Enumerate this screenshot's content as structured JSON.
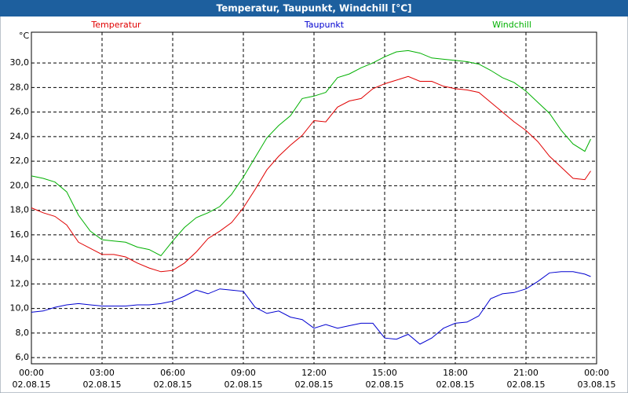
{
  "chart_data": {
    "type": "line",
    "title": "Temperatur, Taupunkt, Windchill [°C]",
    "y_unit": "°C",
    "x": [
      0,
      0.5,
      1,
      1.5,
      2,
      2.5,
      3,
      3.5,
      4,
      4.5,
      5,
      5.5,
      6,
      6.5,
      7,
      7.5,
      8,
      8.5,
      9,
      9.5,
      10,
      10.5,
      11,
      11.5,
      12,
      12.5,
      13,
      13.5,
      14,
      14.5,
      15,
      15.5,
      16,
      16.5,
      17,
      17.5,
      18,
      18.5,
      19,
      19.5,
      20,
      20.5,
      21,
      21.5,
      22,
      22.5,
      23,
      23.5,
      23.75
    ],
    "series": [
      {
        "name": "Temperatur",
        "color": "#e00000",
        "values": [
          18.2,
          17.8,
          17.5,
          16.8,
          15.4,
          14.9,
          14.4,
          14.4,
          14.2,
          13.7,
          13.3,
          13.0,
          13.1,
          13.7,
          14.6,
          15.7,
          16.3,
          17.0,
          18.2,
          19.7,
          21.3,
          22.4,
          23.3,
          24.1,
          25.3,
          25.2,
          26.4,
          26.9,
          27.1,
          27.9,
          28.3,
          28.6,
          28.9,
          28.5,
          28.5,
          28.1,
          27.9,
          27.8,
          27.6,
          26.8,
          26.0,
          25.2,
          24.5,
          23.6,
          22.4,
          21.5,
          20.6,
          20.5,
          21.2
        ]
      },
      {
        "name": "Taupunkt",
        "color": "#0000d0",
        "values": [
          9.7,
          9.8,
          10.1,
          10.3,
          10.4,
          10.3,
          10.2,
          10.2,
          10.2,
          10.3,
          10.3,
          10.4,
          10.6,
          11.0,
          11.5,
          11.2,
          11.6,
          11.5,
          11.4,
          10.1,
          9.6,
          9.8,
          9.3,
          9.1,
          8.4,
          8.7,
          8.4,
          8.6,
          8.8,
          8.8,
          7.6,
          7.5,
          7.9,
          7.1,
          7.6,
          8.4,
          8.8,
          8.9,
          9.4,
          10.8,
          11.2,
          11.3,
          11.6,
          12.2,
          12.9,
          13.0,
          13.0,
          12.8,
          12.6
        ]
      },
      {
        "name": "Windchill",
        "color": "#00b000",
        "values": [
          20.8,
          20.6,
          20.3,
          19.5,
          17.6,
          16.3,
          15.6,
          15.5,
          15.4,
          15.0,
          14.8,
          14.3,
          15.5,
          16.6,
          17.4,
          17.8,
          18.3,
          19.3,
          20.7,
          22.3,
          23.9,
          24.9,
          25.7,
          27.1,
          27.3,
          27.6,
          28.8,
          29.1,
          29.6,
          30.0,
          30.5,
          30.9,
          31.0,
          30.8,
          30.4,
          30.3,
          30.2,
          30.1,
          29.9,
          29.4,
          28.8,
          28.4,
          27.7,
          26.8,
          25.9,
          24.5,
          23.4,
          22.8,
          23.8
        ]
      }
    ],
    "xlim": [
      0,
      24
    ],
    "xticks": [
      {
        "value": 0,
        "label": "00:00"
      },
      {
        "value": 3,
        "label": "03:00"
      },
      {
        "value": 6,
        "label": "06:00"
      },
      {
        "value": 9,
        "label": "09:00"
      },
      {
        "value": 12,
        "label": "12:00"
      },
      {
        "value": 15,
        "label": "15:00"
      },
      {
        "value": 18,
        "label": "18:00"
      },
      {
        "value": 21,
        "label": "21:00"
      },
      {
        "value": 24,
        "label": "00:00"
      }
    ],
    "xtick_dates": [
      "02.08.15",
      "02.08.15",
      "02.08.15",
      "02.08.15",
      "02.08.15",
      "02.08.15",
      "02.08.15",
      "02.08.15",
      "03.08.15"
    ],
    "ylim": [
      5.5,
      32.5
    ],
    "yticks": [
      {
        "value": 6,
        "label": "6,0"
      },
      {
        "value": 8,
        "label": "8,0"
      },
      {
        "value": 10,
        "label": "10,0"
      },
      {
        "value": 12,
        "label": "12,0"
      },
      {
        "value": 14,
        "label": "14,0"
      },
      {
        "value": 16,
        "label": "16,0"
      },
      {
        "value": 18,
        "label": "18,0"
      },
      {
        "value": 20,
        "label": "20,0"
      },
      {
        "value": 22,
        "label": "22,0"
      },
      {
        "value": 24,
        "label": "24,0"
      },
      {
        "value": 26,
        "label": "26,0"
      },
      {
        "value": 28,
        "label": "28,0"
      },
      {
        "value": 30,
        "label": "30,0"
      }
    ],
    "grid": true
  }
}
